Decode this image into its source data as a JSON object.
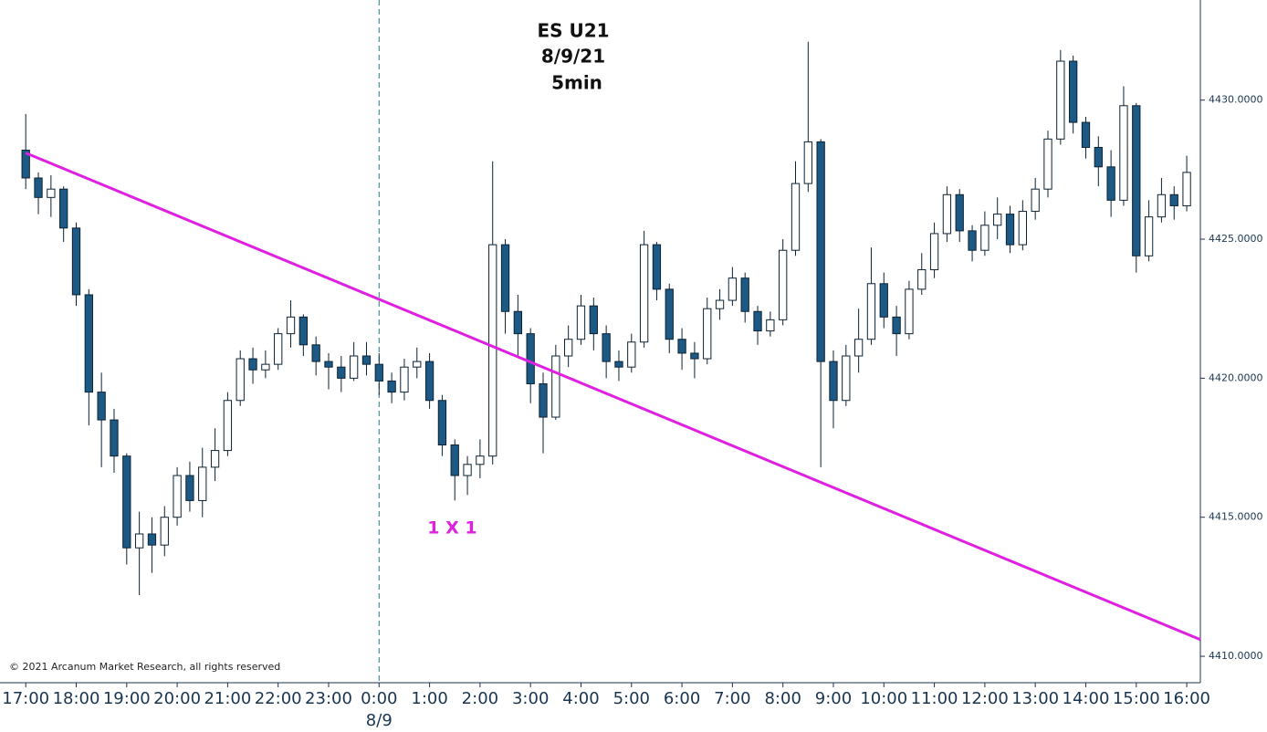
{
  "chart_data": {
    "type": "candlestick",
    "title": [
      "ES U21",
      "8/9/21",
      "5min"
    ],
    "copyright": "© 2021 Arcanum Market Research, all rights reserved",
    "up_color": "#ffffff",
    "down_color": "#1c5a85",
    "outline_color": "#0c2233",
    "xlim": [
      -0.51,
      23.27
    ],
    "ylim": [
      4409.05,
      4433.6
    ],
    "yticks": [
      {
        "value": 4410,
        "label": "4410.0000"
      },
      {
        "value": 4415,
        "label": "4415.0000"
      },
      {
        "value": 4420,
        "label": "4420.0000"
      },
      {
        "value": 4425,
        "label": "4425.0000"
      },
      {
        "value": 4430,
        "label": "4430.0000"
      }
    ],
    "xticks": [
      {
        "value": 0,
        "label": "17:00"
      },
      {
        "value": 1,
        "label": "18:00"
      },
      {
        "value": 2,
        "label": "19:00"
      },
      {
        "value": 3,
        "label": "20:00"
      },
      {
        "value": 4,
        "label": "21:00"
      },
      {
        "value": 5,
        "label": "22:00"
      },
      {
        "value": 6,
        "label": "23:00"
      },
      {
        "value": 7,
        "label": "0:00"
      },
      {
        "value": 8,
        "label": "1:00"
      },
      {
        "value": 9,
        "label": "2:00"
      },
      {
        "value": 10,
        "label": "3:00"
      },
      {
        "value": 11,
        "label": "4:00"
      },
      {
        "value": 12,
        "label": "5:00"
      },
      {
        "value": 13,
        "label": "6:00"
      },
      {
        "value": 14,
        "label": "7:00"
      },
      {
        "value": 15,
        "label": "8:00"
      },
      {
        "value": 16,
        "label": "9:00"
      },
      {
        "value": 17,
        "label": "10:00"
      },
      {
        "value": 18,
        "label": "11:00"
      },
      {
        "value": 19,
        "label": "12:00"
      },
      {
        "value": 20,
        "label": "13:00"
      },
      {
        "value": 21,
        "label": "14:00"
      },
      {
        "value": 22,
        "label": "15:00"
      },
      {
        "value": 23,
        "label": "16:00"
      }
    ],
    "session_marker": {
      "value": 7,
      "label": "8/9",
      "color": "#2a7a8a"
    },
    "trendline": {
      "label": "1 X 1",
      "color": "#e020e0",
      "x": [
        0,
        23.27
      ],
      "values": [
        4428.1,
        4410.6
      ],
      "label_x": 8.45,
      "label_y": 4414.6
    },
    "x": [
      0,
      0.25,
      0.5,
      0.75,
      1,
      1.25,
      1.5,
      1.75,
      2,
      2.25,
      2.5,
      2.75,
      3,
      3.25,
      3.5,
      3.75,
      4,
      4.25,
      4.5,
      4.75,
      5,
      5.25,
      5.5,
      5.75,
      6,
      6.25,
      6.5,
      6.75,
      7,
      7.25,
      7.5,
      7.75,
      8,
      8.25,
      8.5,
      8.75,
      9,
      9.25,
      9.5,
      9.75,
      10,
      10.25,
      10.5,
      10.75,
      11,
      11.25,
      11.5,
      11.75,
      12,
      12.25,
      12.5,
      12.75,
      13,
      13.25,
      13.5,
      13.75,
      14,
      14.25,
      14.5,
      14.75,
      15,
      15.25,
      15.5,
      15.75,
      16,
      16.25,
      16.5,
      16.75,
      17,
      17.25,
      17.5,
      17.75,
      18,
      18.25,
      18.5,
      18.75,
      19,
      19.25,
      19.5,
      19.75,
      20,
      20.25,
      20.5,
      20.75,
      21,
      21.25,
      21.5,
      21.75,
      22,
      22.25,
      22.5,
      22.75,
      23
    ],
    "open": [
      4428.2,
      4427.2,
      4426.5,
      4426.8,
      4425.4,
      4423.0,
      4419.5,
      4418.5,
      4417.2,
      4413.9,
      4414.4,
      4414.0,
      4415.0,
      4416.5,
      4415.6,
      4416.8,
      4417.4,
      4419.2,
      4420.7,
      4420.3,
      4420.5,
      4421.6,
      4422.2,
      4421.2,
      4420.6,
      4420.4,
      4420.0,
      4420.8,
      4420.5,
      4419.9,
      4419.5,
      4420.4,
      4420.6,
      4419.2,
      4417.6,
      4416.5,
      4416.9,
      4417.2,
      4424.8,
      4422.4,
      4421.6,
      4419.8,
      4418.6,
      4420.8,
      4421.4,
      4422.6,
      4421.6,
      4420.6,
      4420.4,
      4421.3,
      4424.8,
      4423.2,
      4421.4,
      4420.9,
      4420.7,
      4422.5,
      4422.8,
      4423.6,
      4422.4,
      4421.7,
      4422.1,
      4424.6,
      4427.0,
      4428.5,
      4420.6,
      4419.2,
      4420.8,
      4421.4,
      4423.4,
      4422.2,
      4421.6,
      4423.2,
      4423.9,
      4425.2,
      4426.6,
      4425.3,
      4424.6,
      4425.5,
      4425.9,
      4424.8,
      4426.0,
      4426.8,
      4428.6,
      4431.4,
      4429.2,
      4428.3,
      4427.6,
      4426.4,
      4429.8,
      4424.4,
      4425.8,
      4426.6,
      4426.2
    ],
    "high": [
      4429.5,
      4427.4,
      4427.3,
      4426.9,
      4425.6,
      4423.2,
      4420.2,
      4418.9,
      4417.3,
      4415.2,
      4415.0,
      4415.4,
      4416.8,
      4417.0,
      4417.5,
      4418.2,
      4419.5,
      4421.0,
      4421.1,
      4421.0,
      4421.8,
      4422.8,
      4422.3,
      4421.5,
      4420.9,
      4420.8,
      4421.3,
      4421.3,
      4420.9,
      4420.2,
      4420.7,
      4421.1,
      4420.9,
      4419.4,
      4417.8,
      4417.2,
      4417.8,
      4427.8,
      4425.0,
      4423.0,
      4421.8,
      4420.2,
      4421.2,
      4421.9,
      4423.0,
      4422.9,
      4421.9,
      4421.0,
      4421.6,
      4425.3,
      4424.9,
      4423.4,
      4421.8,
      4421.3,
      4422.9,
      4423.2,
      4424.0,
      4423.8,
      4422.6,
      4422.4,
      4425.0,
      4427.8,
      4432.1,
      4428.6,
      4421.0,
      4421.2,
      4422.5,
      4424.7,
      4423.8,
      4422.6,
      4423.5,
      4424.5,
      4425.6,
      4426.9,
      4426.8,
      4425.5,
      4426.0,
      4426.5,
      4426.2,
      4426.4,
      4427.2,
      4428.9,
      4431.8,
      4431.6,
      4429.4,
      4428.7,
      4428.2,
      4430.5,
      4429.9,
      4426.4,
      4427.2,
      4426.9,
      4428.0
    ],
    "low": [
      4426.8,
      4425.9,
      4425.8,
      4424.9,
      4422.6,
      4418.3,
      4416.8,
      4416.6,
      4413.3,
      4412.2,
      4413.0,
      4413.6,
      4414.7,
      4415.2,
      4415.0,
      4416.3,
      4417.2,
      4419.0,
      4419.8,
      4420.0,
      4420.3,
      4421.1,
      4420.8,
      4420.1,
      4419.6,
      4419.5,
      4419.9,
      4420.1,
      4419.4,
      4419.1,
      4419.2,
      4420.0,
      4418.9,
      4417.2,
      4415.6,
      4415.8,
      4416.4,
      4416.9,
      4421.6,
      4420.8,
      4419.1,
      4417.3,
      4418.5,
      4420.4,
      4421.2,
      4421.0,
      4420.0,
      4419.9,
      4420.2,
      4421.1,
      4422.8,
      4420.9,
      4420.3,
      4420.0,
      4420.5,
      4422.1,
      4422.6,
      4422.0,
      4421.2,
      4421.5,
      4421.9,
      4424.4,
      4426.7,
      4416.8,
      4418.2,
      4419.0,
      4420.2,
      4421.2,
      4421.8,
      4420.8,
      4421.4,
      4423.0,
      4423.6,
      4424.9,
      4424.9,
      4424.2,
      4424.4,
      4425.0,
      4424.5,
      4424.6,
      4425.7,
      4426.5,
      4428.4,
      4428.8,
      4427.9,
      4426.9,
      4425.8,
      4426.2,
      4423.8,
      4424.2,
      4425.6,
      4425.7,
      4426.0
    ],
    "close": [
      4427.2,
      4426.5,
      4426.8,
      4425.4,
      4423.0,
      4419.5,
      4418.5,
      4417.2,
      4413.9,
      4414.4,
      4414.0,
      4415.0,
      4416.5,
      4415.6,
      4416.8,
      4417.4,
      4419.2,
      4420.7,
      4420.3,
      4420.5,
      4421.6,
      4422.2,
      4421.2,
      4420.6,
      4420.4,
      4420.0,
      4420.8,
      4420.5,
      4419.9,
      4419.5,
      4420.4,
      4420.6,
      4419.2,
      4417.6,
      4416.5,
      4416.9,
      4417.2,
      4424.8,
      4422.4,
      4421.6,
      4419.8,
      4418.6,
      4420.8,
      4421.4,
      4422.6,
      4421.6,
      4420.6,
      4420.4,
      4421.3,
      4424.8,
      4423.2,
      4421.4,
      4420.9,
      4420.7,
      4422.5,
      4422.8,
      4423.6,
      4422.4,
      4421.7,
      4422.1,
      4424.6,
      4427.0,
      4428.5,
      4420.6,
      4419.2,
      4420.8,
      4421.4,
      4423.4,
      4422.2,
      4421.6,
      4423.2,
      4423.9,
      4425.2,
      4426.6,
      4425.3,
      4424.6,
      4425.5,
      4425.9,
      4424.8,
      4426.0,
      4426.8,
      4428.6,
      4431.4,
      4429.2,
      4428.3,
      4427.6,
      4426.4,
      4429.8,
      4424.4,
      4425.8,
      4426.6,
      4426.2,
      4427.4
    ]
  }
}
